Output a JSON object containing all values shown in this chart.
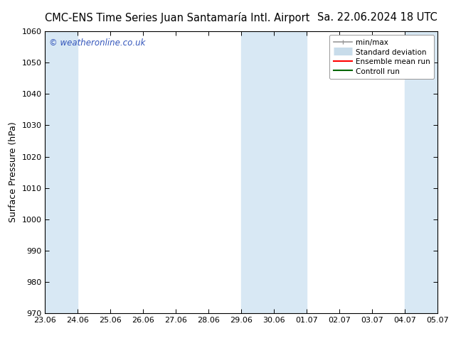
{
  "title_left": "CMC-ENS Time Series Juan Santamaría Intl. Airport",
  "title_right": "Sa. 22.06.2024 18 UTC",
  "ylabel": "Surface Pressure (hPa)",
  "ylim": [
    970,
    1060
  ],
  "yticks": [
    970,
    980,
    990,
    1000,
    1010,
    1020,
    1030,
    1040,
    1050,
    1060
  ],
  "xtick_labels": [
    "23.06",
    "24.06",
    "25.06",
    "26.06",
    "27.06",
    "28.06",
    "29.06",
    "30.06",
    "01.07",
    "02.07",
    "03.07",
    "04.07",
    "05.07"
  ],
  "xlim": [
    0,
    12
  ],
  "shaded_bands": [
    {
      "x_start": 0,
      "x_end": 1
    },
    {
      "x_start": 6,
      "x_end": 8
    },
    {
      "x_start": 11,
      "x_end": 12
    }
  ],
  "shade_color": "#d8e8f4",
  "bg_color": "#ffffff",
  "watermark": "© weatheronline.co.uk",
  "watermark_color": "#3355bb",
  "legend_items": [
    {
      "label": "min/max",
      "color": "#999999",
      "lw": 1.2
    },
    {
      "label": "Standard deviation",
      "color": "#c8dcea",
      "lw": 8
    },
    {
      "label": "Ensemble mean run",
      "color": "#ff0000",
      "lw": 1.5
    },
    {
      "label": "Controll run",
      "color": "#006600",
      "lw": 1.5
    }
  ],
  "title_fontsize": 10.5,
  "tick_fontsize": 8,
  "ylabel_fontsize": 9,
  "watermark_fontsize": 8.5,
  "legend_fontsize": 7.5
}
